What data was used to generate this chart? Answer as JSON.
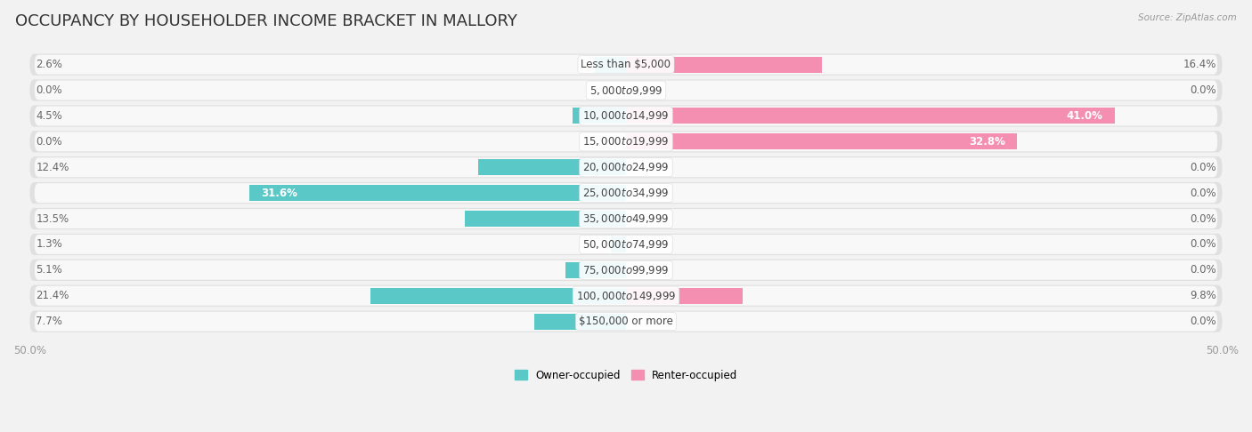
{
  "title": "OCCUPANCY BY HOUSEHOLDER INCOME BRACKET IN MALLORY",
  "source": "Source: ZipAtlas.com",
  "categories": [
    "Less than $5,000",
    "$5,000 to $9,999",
    "$10,000 to $14,999",
    "$15,000 to $19,999",
    "$20,000 to $24,999",
    "$25,000 to $34,999",
    "$35,000 to $49,999",
    "$50,000 to $74,999",
    "$75,000 to $99,999",
    "$100,000 to $149,999",
    "$150,000 or more"
  ],
  "owner_values": [
    2.6,
    0.0,
    4.5,
    0.0,
    12.4,
    31.6,
    13.5,
    1.3,
    5.1,
    21.4,
    7.7
  ],
  "renter_values": [
    16.4,
    0.0,
    41.0,
    32.8,
    0.0,
    0.0,
    0.0,
    0.0,
    0.0,
    9.8,
    0.0
  ],
  "owner_color": "#5bc8c8",
  "renter_color": "#f48fb1",
  "owner_label": "Owner-occupied",
  "renter_label": "Renter-occupied",
  "axis_limit": 50.0,
  "axis_tick_labels": [
    "50.0%",
    "50.0%"
  ],
  "bar_height": 0.62,
  "background_color": "#f2f2f2",
  "row_bg_color": "#e8e8e8",
  "row_inner_color": "#ffffff",
  "title_fontsize": 13,
  "label_fontsize": 8.5,
  "value_fontsize": 8.5,
  "category_fontsize": 8.5
}
